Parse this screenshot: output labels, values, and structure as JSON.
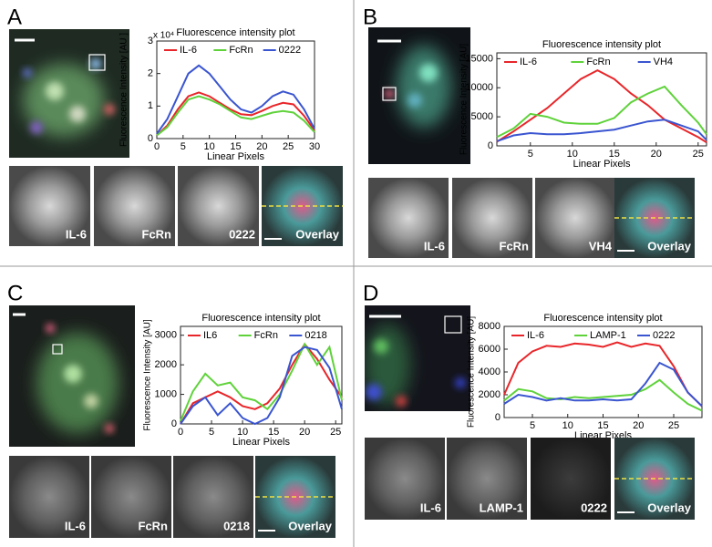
{
  "chart_data": [
    {
      "type": "line",
      "title": "Fluorescence intensity plot",
      "x_label": "Linear Pixels",
      "y_label": "Fluorescence Intensity [AU ]",
      "y_multiplier_label": "x 10⁴",
      "x": [
        0,
        2,
        4,
        6,
        8,
        10,
        12,
        14,
        16,
        18,
        20,
        22,
        24,
        26,
        28,
        30
      ],
      "xlim": [
        0,
        30
      ],
      "xticks": [
        0,
        5,
        10,
        15,
        20,
        25,
        30
      ],
      "ylim": [
        0,
        3
      ],
      "yticks": [
        0,
        1,
        2,
        3
      ],
      "series": [
        {
          "name": "IL-6",
          "color": "#e8262a",
          "values": [
            0.1,
            0.4,
            0.9,
            1.3,
            1.42,
            1.3,
            1.1,
            0.9,
            0.75,
            0.72,
            0.85,
            1.0,
            1.1,
            1.05,
            0.7,
            0.25
          ]
        },
        {
          "name": "FcRn",
          "color": "#5fd23a",
          "values": [
            0.1,
            0.35,
            0.8,
            1.2,
            1.3,
            1.2,
            1.05,
            0.85,
            0.65,
            0.6,
            0.7,
            0.8,
            0.85,
            0.8,
            0.55,
            0.2
          ]
        },
        {
          "name": "0222",
          "color": "#3a55d0",
          "values": [
            0.15,
            0.6,
            1.3,
            2.0,
            2.25,
            2.0,
            1.6,
            1.2,
            0.9,
            0.8,
            1.0,
            1.3,
            1.45,
            1.35,
            0.9,
            0.3
          ]
        }
      ]
    },
    {
      "type": "line",
      "title": "Fluorescence intensity plot",
      "x_label": "Linear Pixels",
      "y_label": "Fluorescence Intensity [AU]",
      "x": [
        1,
        3,
        5,
        7,
        9,
        11,
        13,
        15,
        17,
        19,
        21,
        23,
        25,
        26
      ],
      "xlim": [
        1,
        26
      ],
      "xticks": [
        5,
        10,
        15,
        20,
        25
      ],
      "ylim": [
        0,
        16000
      ],
      "yticks": [
        0,
        5000,
        10000,
        15000
      ],
      "series": [
        {
          "name": "IL-6",
          "color": "#e8262a",
          "values": [
            700,
            2500,
            4500,
            6500,
            9000,
            11500,
            13000,
            11500,
            9000,
            7000,
            4500,
            3000,
            1500,
            600
          ]
        },
        {
          "name": "FcRn",
          "color": "#5fd23a",
          "values": [
            1500,
            3000,
            5500,
            5000,
            4000,
            3800,
            3800,
            4800,
            7500,
            9000,
            10200,
            7000,
            4000,
            2000
          ]
        },
        {
          "name": "VH4",
          "color": "#3a55d0",
          "values": [
            800,
            1800,
            2200,
            2000,
            2000,
            2200,
            2500,
            2800,
            3500,
            4200,
            4500,
            3500,
            2500,
            1000
          ]
        }
      ]
    },
    {
      "type": "line",
      "title": "Fluorescence intensity plot",
      "x_label": "Linear Pixels",
      "y_label": "Fluorescence Intensity [AU]",
      "x": [
        0,
        2,
        4,
        6,
        8,
        10,
        12,
        14,
        16,
        18,
        20,
        22,
        24,
        26
      ],
      "xlim": [
        0,
        26
      ],
      "xticks": [
        0,
        5,
        10,
        15,
        20,
        25
      ],
      "ylim": [
        0,
        3300
      ],
      "yticks": [
        0,
        1000,
        2000,
        3000
      ],
      "series": [
        {
          "name": "IL6",
          "color": "#e8262a",
          "values": [
            0,
            700,
            900,
            1100,
            900,
            600,
            500,
            700,
            1200,
            2000,
            2700,
            2200,
            1500,
            900
          ]
        },
        {
          "name": "FcRn",
          "color": "#5fd23a",
          "values": [
            100,
            1100,
            1700,
            1300,
            1400,
            900,
            800,
            500,
            1000,
            1800,
            2700,
            2000,
            2600,
            800
          ]
        },
        {
          "name": "0218",
          "color": "#3a55d0",
          "values": [
            0,
            600,
            900,
            300,
            700,
            200,
            0,
            200,
            900,
            2300,
            2600,
            2500,
            1900,
            500
          ]
        }
      ]
    },
    {
      "type": "line",
      "title": "Fluorescence intensity plot",
      "x_label": "Linear Pixels",
      "y_label": "Fluorescence Intensity [AU]",
      "x": [
        1,
        3,
        5,
        7,
        9,
        11,
        13,
        15,
        17,
        19,
        21,
        23,
        25,
        27,
        29
      ],
      "xlim": [
        1,
        29
      ],
      "xticks": [
        5,
        10,
        15,
        20,
        25
      ],
      "ylim": [
        0,
        8000
      ],
      "yticks": [
        0,
        2000,
        4000,
        6000,
        8000
      ],
      "series": [
        {
          "name": "IL-6",
          "color": "#e8262a",
          "values": [
            2000,
            4800,
            5800,
            6300,
            6200,
            6500,
            6400,
            6200,
            6600,
            6200,
            6500,
            6300,
            4500,
            2200,
            1000
          ]
        },
        {
          "name": "LAMP-1",
          "color": "#5fd23a",
          "values": [
            1500,
            2500,
            2300,
            1700,
            1600,
            1800,
            1700,
            1800,
            1900,
            2000,
            2500,
            3300,
            2200,
            1200,
            600
          ]
        },
        {
          "name": "0222",
          "color": "#3a55d0",
          "values": [
            1200,
            2000,
            1800,
            1500,
            1700,
            1500,
            1500,
            1600,
            1500,
            1600,
            3000,
            4800,
            4200,
            2200,
            1000
          ]
        }
      ]
    }
  ],
  "panels": [
    {
      "letter": "A",
      "tiles": [
        "IL-6",
        "FcRn",
        "0222",
        "Overlay"
      ]
    },
    {
      "letter": "B",
      "tiles": [
        "IL-6",
        "FcRn",
        "VH4",
        "Overlay"
      ]
    },
    {
      "letter": "C",
      "tiles": [
        "IL-6",
        "FcRn",
        "0218",
        "Overlay"
      ]
    },
    {
      "letter": "D",
      "tiles": [
        "IL-6",
        "LAMP-1",
        "0222",
        "Overlay"
      ]
    }
  ]
}
